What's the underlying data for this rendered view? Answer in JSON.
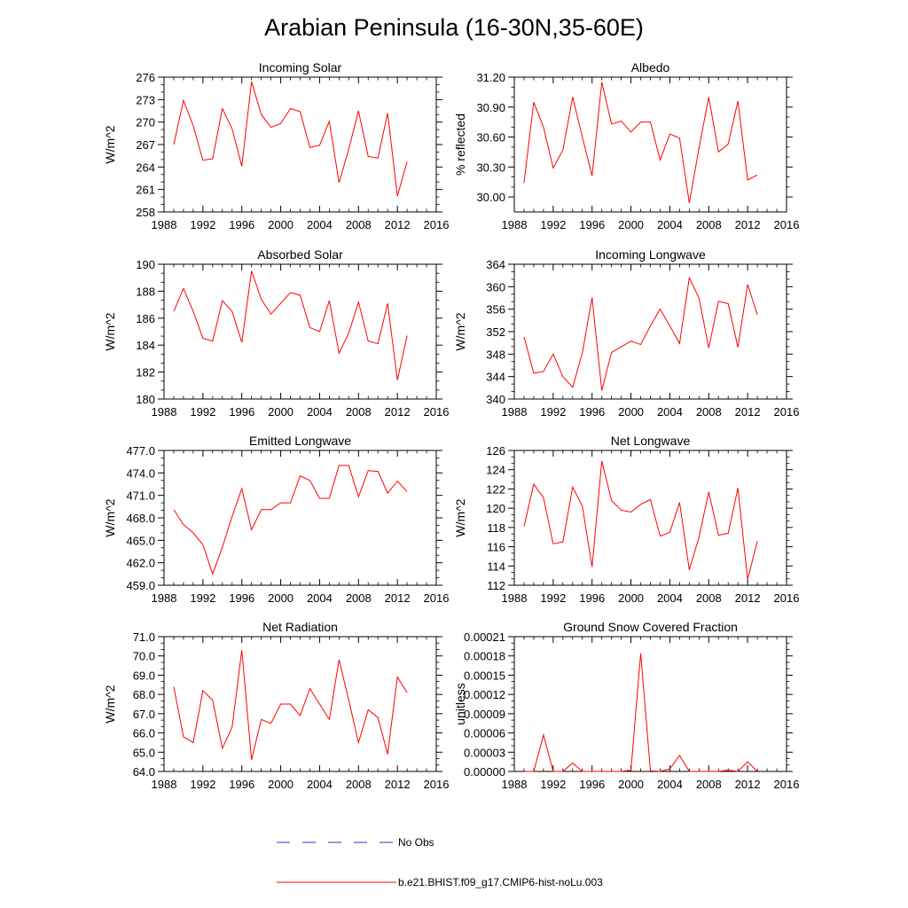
{
  "figure": {
    "title": "Arabian Peninsula (16-30N,35-60E)",
    "line_color": "#ff0000",
    "obs_color": "#3333cc"
  },
  "legend": {
    "obs_label": "No Obs",
    "model_label": "b.e21.BHIST.f09_g17.CMIP6-hist-noLu.003"
  },
  "chart_data": [
    {
      "type": "line",
      "title": "Incoming Solar",
      "ylabel": "W/m^2",
      "xlim": [
        1988,
        2016
      ],
      "ylim": [
        258,
        276
      ],
      "xticks": [
        1988,
        1992,
        1996,
        2000,
        2004,
        2008,
        2012,
        2016
      ],
      "yticks": [
        "258",
        "261",
        "264",
        "267",
        "270",
        "273",
        "276"
      ],
      "x": [
        1989,
        1990,
        1991,
        1992,
        1993,
        1994,
        1995,
        1996,
        1997,
        1998,
        1999,
        2000,
        2001,
        2002,
        2003,
        2004,
        2005,
        2006,
        2007,
        2008,
        2009,
        2010,
        2011,
        2012,
        2013
      ],
      "values": [
        267.0,
        272.9,
        269.5,
        264.9,
        265.1,
        271.8,
        269.1,
        264.1,
        275.4,
        271.0,
        269.3,
        269.8,
        271.8,
        271.4,
        266.6,
        266.9,
        270.1,
        261.9,
        266.4,
        271.5,
        265.4,
        265.2,
        271.2,
        260.1,
        264.7
      ]
    },
    {
      "type": "line",
      "title": "Albedo",
      "ylabel": "% reflected",
      "xlim": [
        1988,
        2016
      ],
      "ylim": [
        29.85,
        31.2
      ],
      "xticks": [
        1988,
        1992,
        1996,
        2000,
        2004,
        2008,
        2012,
        2016
      ],
      "yticks": [
        "30.00",
        "30.30",
        "30.60",
        "30.90",
        "31.20"
      ],
      "x": [
        1989,
        1990,
        1991,
        1992,
        1993,
        1994,
        1995,
        1996,
        1997,
        1998,
        1999,
        2000,
        2001,
        2002,
        2003,
        2004,
        2005,
        2006,
        2007,
        2008,
        2009,
        2010,
        2011,
        2012,
        2013
      ],
      "values": [
        30.14,
        30.95,
        30.7,
        30.29,
        30.47,
        31.0,
        30.6,
        30.21,
        31.15,
        30.73,
        30.76,
        30.65,
        30.75,
        30.75,
        30.37,
        30.63,
        30.59,
        29.94,
        30.49,
        31.0,
        30.45,
        30.53,
        30.96,
        30.17,
        30.22
      ]
    },
    {
      "type": "line",
      "title": "Absorbed Solar",
      "ylabel": "W/m^2",
      "xlim": [
        1988,
        2016
      ],
      "ylim": [
        180,
        190
      ],
      "xticks": [
        1988,
        1992,
        1996,
        2000,
        2004,
        2008,
        2012,
        2016
      ],
      "yticks": [
        "180",
        "182",
        "184",
        "186",
        "188",
        "190"
      ],
      "x": [
        1989,
        1990,
        1991,
        1992,
        1993,
        1994,
        1995,
        1996,
        1997,
        1998,
        1999,
        2000,
        2001,
        2002,
        2003,
        2004,
        2005,
        2006,
        2007,
        2008,
        2009,
        2010,
        2011,
        2012,
        2013
      ],
      "values": [
        186.5,
        188.2,
        186.5,
        184.5,
        184.3,
        187.3,
        186.5,
        184.2,
        189.5,
        187.4,
        186.3,
        187.1,
        187.9,
        187.7,
        185.3,
        185.0,
        187.3,
        183.4,
        184.9,
        187.2,
        184.3,
        184.1,
        187.1,
        181.4,
        184.7
      ]
    },
    {
      "type": "line",
      "title": "Incoming Longwave",
      "ylabel": "W/m^2",
      "xlim": [
        1988,
        2016
      ],
      "ylim": [
        340,
        364
      ],
      "xticks": [
        1988,
        1992,
        1996,
        2000,
        2004,
        2008,
        2012,
        2016
      ],
      "yticks": [
        "340",
        "344",
        "348",
        "352",
        "356",
        "360",
        "364"
      ],
      "x": [
        1989,
        1990,
        1991,
        1992,
        1993,
        1994,
        1995,
        1996,
        1997,
        1998,
        1999,
        2000,
        2001,
        2002,
        2003,
        2004,
        2005,
        2006,
        2007,
        2008,
        2009,
        2010,
        2011,
        2012,
        2013
      ],
      "values": [
        351.1,
        344.6,
        344.9,
        348.0,
        344.0,
        342.1,
        348.2,
        358.1,
        341.5,
        348.3,
        349.3,
        350.3,
        349.7,
        353.0,
        356.0,
        353.0,
        349.9,
        361.6,
        358.0,
        349.1,
        357.4,
        357.0,
        349.2,
        360.4,
        355.0
      ]
    },
    {
      "type": "line",
      "title": "Emitted Longwave",
      "ylabel": "W/m^2",
      "xlim": [
        1988,
        2016
      ],
      "ylim": [
        459,
        477
      ],
      "xticks": [
        1988,
        1992,
        1996,
        2000,
        2004,
        2008,
        2012,
        2016
      ],
      "yticks": [
        "459.0",
        "462.0",
        "465.0",
        "468.0",
        "471.0",
        "474.0",
        "477.0"
      ],
      "x": [
        1989,
        1990,
        1991,
        1992,
        1993,
        1994,
        1995,
        1996,
        1997,
        1998,
        1999,
        2000,
        2001,
        2002,
        2003,
        2004,
        2005,
        2006,
        2007,
        2008,
        2009,
        2010,
        2011,
        2012,
        2013
      ],
      "values": [
        469.1,
        467.1,
        466.0,
        464.4,
        460.5,
        464.1,
        468.2,
        471.9,
        466.4,
        469.1,
        469.1,
        470.0,
        470.0,
        473.6,
        473.0,
        470.6,
        470.6,
        475.0,
        475.0,
        470.8,
        474.3,
        474.2,
        471.3,
        472.9,
        471.5
      ]
    },
    {
      "type": "line",
      "title": "Net Longwave",
      "ylabel": "W/m^2",
      "xlim": [
        1988,
        2016
      ],
      "ylim": [
        112,
        126
      ],
      "xticks": [
        1988,
        1992,
        1996,
        2000,
        2004,
        2008,
        2012,
        2016
      ],
      "yticks": [
        "112",
        "114",
        "116",
        "118",
        "120",
        "122",
        "124",
        "126"
      ],
      "x": [
        1989,
        1990,
        1991,
        1992,
        1993,
        1994,
        1995,
        1996,
        1997,
        1998,
        1999,
        2000,
        2001,
        2002,
        2003,
        2004,
        2005,
        2006,
        2007,
        2008,
        2009,
        2010,
        2011,
        2012,
        2013
      ],
      "values": [
        118.1,
        122.5,
        121.1,
        116.3,
        116.5,
        122.2,
        120.2,
        113.9,
        124.9,
        120.8,
        119.8,
        119.6,
        120.4,
        120.9,
        117.1,
        117.5,
        120.6,
        113.6,
        117.0,
        121.7,
        117.2,
        117.4,
        122.1,
        112.6,
        116.6
      ]
    },
    {
      "type": "line",
      "title": "Net Radiation",
      "ylabel": "W/m^2",
      "xlim": [
        1988,
        2016
      ],
      "ylim": [
        64,
        71
      ],
      "xticks": [
        1988,
        1992,
        1996,
        2000,
        2004,
        2008,
        2012,
        2016
      ],
      "yticks": [
        "64.0",
        "65.0",
        "66.0",
        "67.0",
        "68.0",
        "69.0",
        "70.0",
        "71.0"
      ],
      "x": [
        1989,
        1990,
        1991,
        1992,
        1993,
        1994,
        1995,
        1996,
        1997,
        1998,
        1999,
        2000,
        2001,
        2002,
        2003,
        2004,
        2005,
        2006,
        2007,
        2008,
        2009,
        2010,
        2011,
        2012,
        2013
      ],
      "values": [
        68.4,
        65.8,
        65.5,
        68.2,
        67.7,
        65.2,
        66.3,
        70.3,
        64.6,
        66.7,
        66.5,
        67.5,
        67.5,
        66.9,
        68.3,
        67.5,
        66.7,
        69.8,
        67.7,
        65.5,
        67.2,
        66.8,
        64.9,
        68.9,
        68.1
      ]
    },
    {
      "type": "line",
      "title": "Ground Snow Covered Fraction",
      "ylabel": "unitless",
      "xlim": [
        1988,
        2016
      ],
      "ylim": [
        0,
        0.00021
      ],
      "xticks": [
        1988,
        1992,
        1996,
        2000,
        2004,
        2008,
        2012,
        2016
      ],
      "yticks": [
        "0.00000",
        "0.00003",
        "0.00006",
        "0.00009",
        "0.00012",
        "0.00015",
        "0.00018",
        "0.00021"
      ],
      "x": [
        1989,
        1990,
        1991,
        1992,
        1993,
        1994,
        1995,
        1996,
        1997,
        1998,
        1999,
        2000,
        2001,
        2002,
        2003,
        2004,
        2005,
        2006,
        2007,
        2008,
        2009,
        2010,
        2011,
        2012,
        2013
      ],
      "values": [
        0,
        0,
        5.7e-05,
        0,
        0,
        1.3e-05,
        0,
        0,
        0,
        0,
        0,
        2e-06,
        0.000184,
        1e-06,
        0,
        4e-06,
        2.5e-05,
        0,
        0,
        0,
        0,
        2e-06,
        0,
        1.5e-05,
        0
      ]
    }
  ]
}
